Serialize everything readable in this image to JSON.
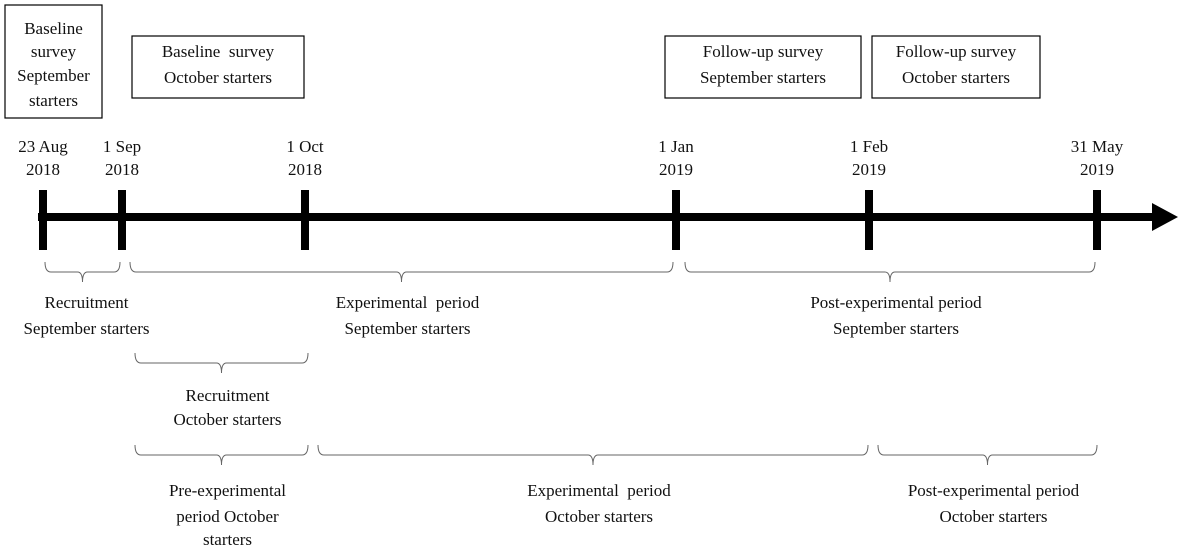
{
  "survey_boxes": [
    {
      "lines": [
        "Baseline",
        "survey",
        "September",
        "starters"
      ]
    },
    {
      "lines": [
        "Baseline  survey",
        "October starters"
      ]
    },
    {
      "lines": [
        "Follow-up survey",
        "September starters"
      ]
    },
    {
      "lines": [
        "Follow-up survey",
        "October starters"
      ]
    }
  ],
  "dates": [
    {
      "lines": [
        "23 Aug",
        "2018"
      ]
    },
    {
      "lines": [
        "1 Sep",
        "2018"
      ]
    },
    {
      "lines": [
        "1 Oct",
        "2018"
      ]
    },
    {
      "lines": [
        "1 Jan",
        "2019"
      ]
    },
    {
      "lines": [
        "1 Feb",
        "2019"
      ]
    },
    {
      "lines": [
        "31 May",
        "2019"
      ]
    }
  ],
  "periods": [
    {
      "lines": [
        "Recruitment",
        "September starters"
      ]
    },
    {
      "lines": [
        "Experimental  period",
        "September starters"
      ]
    },
    {
      "lines": [
        "Post-experimental period",
        "September starters"
      ]
    },
    {
      "lines": [
        "Recruitment",
        "October starters"
      ]
    },
    {
      "lines": [
        "Pre-experimental",
        "period October",
        "starters"
      ]
    },
    {
      "lines": [
        "Experimental  period",
        "October starters"
      ]
    },
    {
      "lines": [
        "Post-experimental period",
        "October starters"
      ]
    }
  ]
}
